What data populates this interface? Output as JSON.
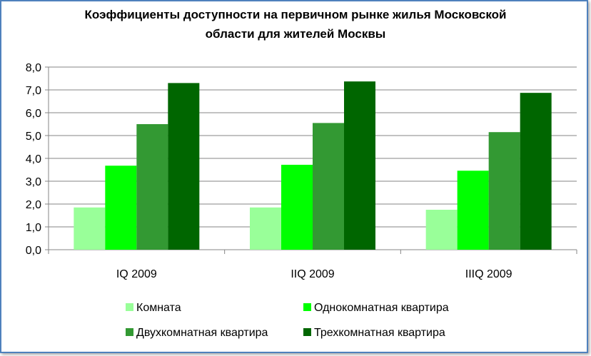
{
  "chart_data": {
    "type": "bar",
    "title_lines": [
      "Коэффициенты доступности на первичном рынке жилья Московской",
      "области для жителей Москвы"
    ],
    "categories": [
      "IQ 2009",
      "IIQ 2009",
      "IIIQ 2009"
    ],
    "series": [
      {
        "name": "Комната",
        "color": "#99ff99",
        "values": [
          1.85,
          1.85,
          1.75
        ]
      },
      {
        "name": "Однокомнатная квартира",
        "color": "#00ff00",
        "values": [
          3.68,
          3.72,
          3.46
        ]
      },
      {
        "name": "Двухкомнатная квартира",
        "color": "#339933",
        "values": [
          5.5,
          5.55,
          5.15
        ]
      },
      {
        "name": "Трехкомнатная квартира",
        "color": "#006600",
        "values": [
          7.3,
          7.37,
          6.87
        ]
      }
    ],
    "ylim": [
      0,
      8
    ],
    "ytick_labels": [
      "0,0",
      "1,0",
      "2,0",
      "3,0",
      "4,0",
      "5,0",
      "6,0",
      "7,0",
      "8,0"
    ],
    "grid": true,
    "legend_position": "bottom"
  }
}
